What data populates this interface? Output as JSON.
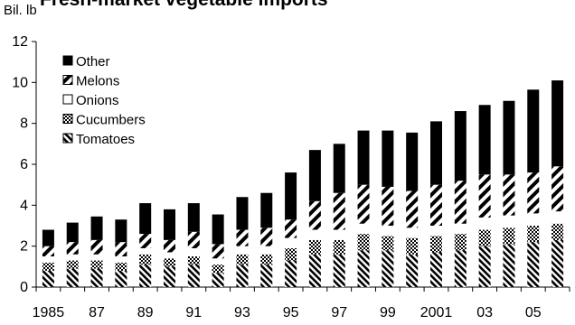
{
  "chart_data": {
    "type": "bar",
    "stacked": true,
    "title": "Fresh-market vegetable imports",
    "ylabel": "Bil. lb",
    "xlabel": "",
    "ylim": [
      0,
      12
    ],
    "yticks": [
      0,
      2,
      4,
      6,
      8,
      10,
      12
    ],
    "grid": false,
    "legend_position": "top-left",
    "categories": [
      "1985",
      "1986",
      "1987",
      "1988",
      "1989",
      "1990",
      "1991",
      "1992",
      "1993",
      "1994",
      "1995",
      "1996",
      "1997",
      "1998",
      "1999",
      "2000",
      "2001",
      "2002",
      "2003",
      "2004",
      "2005",
      "2006"
    ],
    "x_tick_labels": [
      "1985",
      "",
      "87",
      "",
      "89",
      "",
      "91",
      "",
      "93",
      "",
      "95",
      "",
      "97",
      "",
      "99",
      "",
      "2001",
      "",
      "03",
      "",
      "05",
      ""
    ],
    "series": [
      {
        "name": "Tomatoes",
        "pattern": "diagonal-stripes",
        "values": [
          0.8,
          0.9,
          0.9,
          0.8,
          1.1,
          1.0,
          1.1,
          0.7,
          1.1,
          1.1,
          1.3,
          1.6,
          1.6,
          1.8,
          1.8,
          1.6,
          1.7,
          1.8,
          2.0,
          2.1,
          2.2,
          2.3
        ]
      },
      {
        "name": "Cucumbers",
        "pattern": "checkered",
        "values": [
          0.4,
          0.4,
          0.4,
          0.4,
          0.5,
          0.4,
          0.4,
          0.4,
          0.5,
          0.5,
          0.6,
          0.7,
          0.7,
          0.8,
          0.7,
          0.8,
          0.8,
          0.8,
          0.8,
          0.8,
          0.8,
          0.8
        ]
      },
      {
        "name": "Onions",
        "pattern": "white",
        "values": [
          0.3,
          0.3,
          0.3,
          0.3,
          0.3,
          0.3,
          0.4,
          0.3,
          0.4,
          0.4,
          0.5,
          0.5,
          0.5,
          0.5,
          0.5,
          0.5,
          0.5,
          0.5,
          0.6,
          0.6,
          0.6,
          0.6
        ]
      },
      {
        "name": "Melons",
        "pattern": "wide-diagonal",
        "values": [
          0.5,
          0.6,
          0.7,
          0.7,
          0.7,
          0.6,
          0.8,
          0.7,
          0.8,
          0.9,
          0.9,
          1.4,
          1.8,
          1.9,
          1.9,
          1.8,
          2.0,
          2.1,
          2.1,
          2.0,
          2.0,
          2.2
        ]
      },
      {
        "name": "Other",
        "pattern": "solid-black",
        "values": [
          0.8,
          0.95,
          1.15,
          1.1,
          1.5,
          1.5,
          1.4,
          1.45,
          1.6,
          1.7,
          2.3,
          2.5,
          2.4,
          2.65,
          2.75,
          2.85,
          3.1,
          3.4,
          3.4,
          3.6,
          4.05,
          4.2
        ]
      }
    ],
    "legend_order": [
      "Other",
      "Melons",
      "Onions",
      "Cucumbers",
      "Tomatoes"
    ],
    "colors": {
      "fill": "#000000",
      "background": "#ffffff"
    }
  }
}
